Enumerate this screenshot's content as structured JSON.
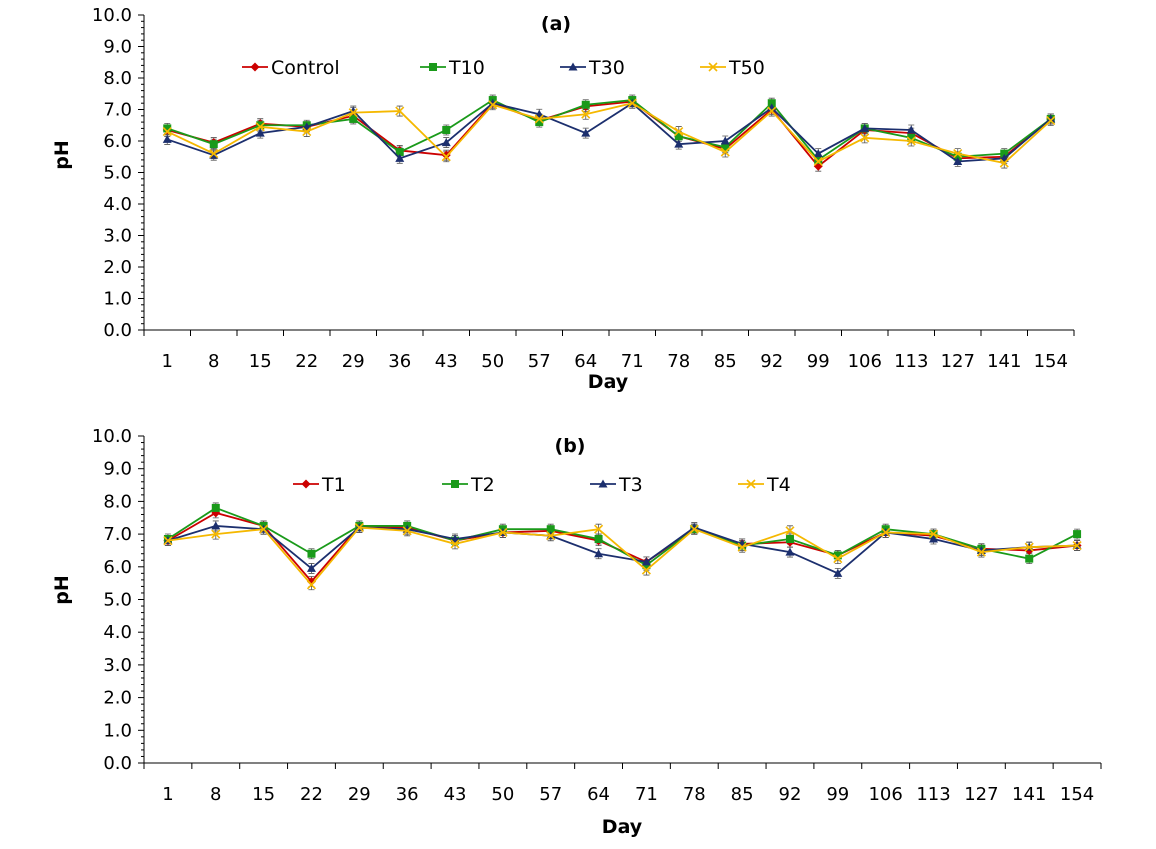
{
  "chart_data": [
    {
      "type": "line",
      "title": "(a)",
      "xlabel": "Day",
      "ylabel": "pH",
      "ylim": [
        0,
        10
      ],
      "ytick_step": 1,
      "yticks": [
        "0.0",
        "1.0",
        "2.0",
        "3.0",
        "4.0",
        "5.0",
        "6.0",
        "7.0",
        "8.0",
        "9.0",
        "10.0"
      ],
      "categories": [
        "1",
        "8",
        "15",
        "22",
        "29",
        "36",
        "43",
        "50",
        "57",
        "64",
        "71",
        "78",
        "85",
        "92",
        "99",
        "106",
        "113",
        "127",
        "141",
        "154"
      ],
      "grid": false,
      "legend_position": "top",
      "series": [
        {
          "name": "Control",
          "color": "#cc0000",
          "marker": "diamond",
          "values": [
            6.35,
            5.95,
            6.55,
            6.45,
            6.8,
            5.7,
            5.55,
            7.2,
            6.65,
            7.1,
            7.25,
            6.15,
            5.75,
            7.0,
            5.2,
            6.35,
            6.25,
            5.45,
            5.5,
            6.7
          ]
        },
        {
          "name": "T10",
          "color": "#1a9a1a",
          "marker": "square",
          "values": [
            6.4,
            5.9,
            6.5,
            6.5,
            6.7,
            5.65,
            6.35,
            7.3,
            6.6,
            7.15,
            7.3,
            6.15,
            5.8,
            7.2,
            5.4,
            6.4,
            6.1,
            5.5,
            5.6,
            6.7
          ]
        },
        {
          "name": "T30",
          "color": "#1c2f6e",
          "marker": "triangle",
          "values": [
            6.05,
            5.55,
            6.25,
            6.45,
            6.95,
            5.45,
            5.95,
            7.2,
            6.85,
            6.25,
            7.2,
            5.9,
            6.0,
            7.05,
            5.6,
            6.4,
            6.35,
            5.35,
            5.45,
            6.7
          ]
        },
        {
          "name": "T50",
          "color": "#f5b800",
          "marker": "x",
          "values": [
            6.3,
            5.6,
            6.45,
            6.3,
            6.9,
            6.95,
            5.5,
            7.15,
            6.7,
            6.85,
            7.2,
            6.3,
            5.65,
            6.95,
            5.35,
            6.1,
            6.0,
            5.6,
            5.3,
            6.65
          ]
        }
      ]
    },
    {
      "type": "line",
      "title": "(b)",
      "xlabel": "Day",
      "ylabel": "pH",
      "ylim": [
        0,
        10
      ],
      "ytick_step": 1,
      "yticks": [
        "0.0",
        "1.0",
        "2.0",
        "3.0",
        "4.0",
        "5.0",
        "6.0",
        "7.0",
        "8.0",
        "9.0",
        "10.0"
      ],
      "categories": [
        "1",
        "8",
        "15",
        "22",
        "29",
        "36",
        "43",
        "50",
        "57",
        "64",
        "71",
        "78",
        "85",
        "92",
        "99",
        "106",
        "113",
        "127",
        "141",
        "154"
      ],
      "grid": false,
      "legend_position": "top",
      "series": [
        {
          "name": "T1",
          "color": "#cc0000",
          "marker": "diamond",
          "values": [
            6.8,
            7.65,
            7.25,
            5.55,
            7.25,
            7.2,
            6.8,
            7.05,
            7.1,
            6.8,
            6.15,
            7.15,
            6.7,
            6.75,
            6.35,
            7.05,
            6.95,
            6.55,
            6.5,
            6.65
          ]
        },
        {
          "name": "T2",
          "color": "#1a9a1a",
          "marker": "square",
          "values": [
            6.85,
            7.8,
            7.25,
            6.4,
            7.25,
            7.25,
            6.8,
            7.15,
            7.15,
            6.85,
            6.05,
            7.15,
            6.65,
            6.85,
            6.35,
            7.15,
            7.0,
            6.55,
            6.25,
            7.0
          ]
        },
        {
          "name": "T3",
          "color": "#1c2f6e",
          "marker": "triangle",
          "values": [
            6.8,
            7.25,
            7.15,
            5.95,
            7.2,
            7.15,
            6.85,
            7.05,
            6.95,
            6.4,
            6.15,
            7.2,
            6.7,
            6.45,
            5.8,
            7.05,
            6.85,
            6.5,
            6.6,
            6.65
          ]
        },
        {
          "name": "T4",
          "color": "#f5b800",
          "marker": "x",
          "values": [
            6.8,
            7.0,
            7.15,
            5.45,
            7.2,
            7.1,
            6.7,
            7.05,
            6.95,
            7.15,
            5.9,
            7.15,
            6.6,
            7.1,
            6.25,
            7.05,
            7.0,
            6.45,
            6.6,
            6.65
          ]
        }
      ]
    }
  ]
}
